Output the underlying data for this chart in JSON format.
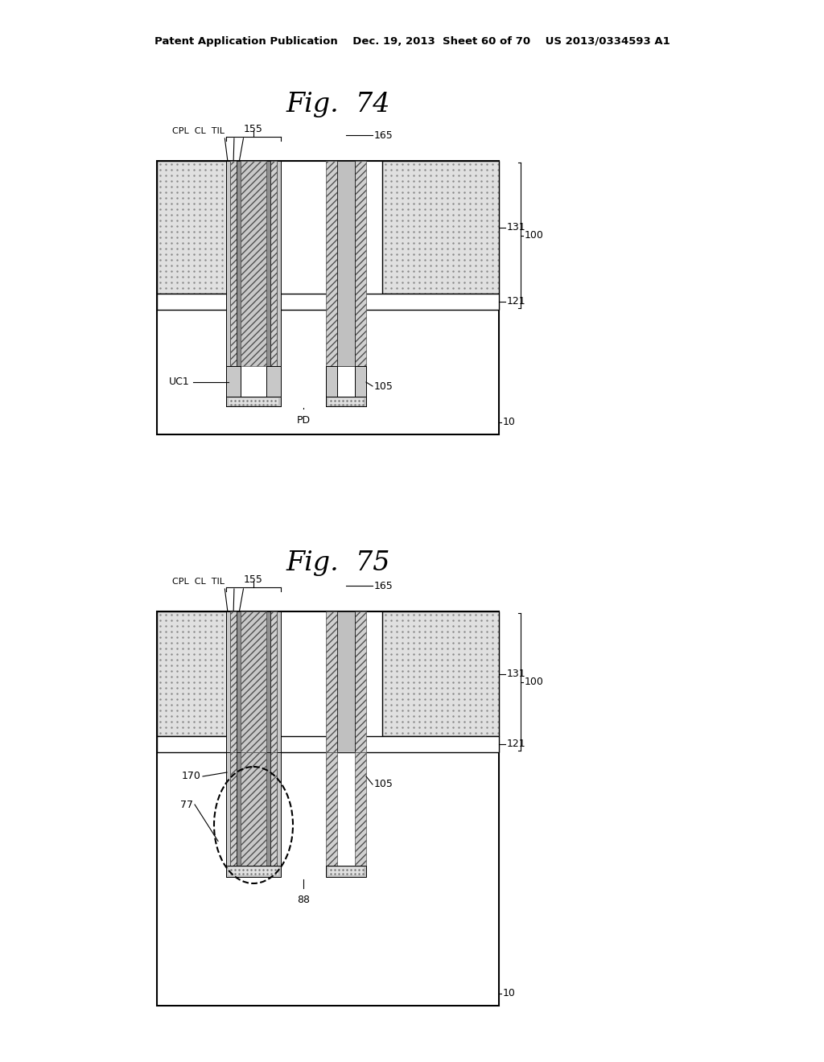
{
  "bg_color": "#ffffff",
  "header_text": "Patent Application Publication    Dec. 19, 2013  Sheet 60 of 70    US 2013/0334593 A1",
  "fig74_title": "Fig.  74",
  "fig75_title": "Fig.  75"
}
